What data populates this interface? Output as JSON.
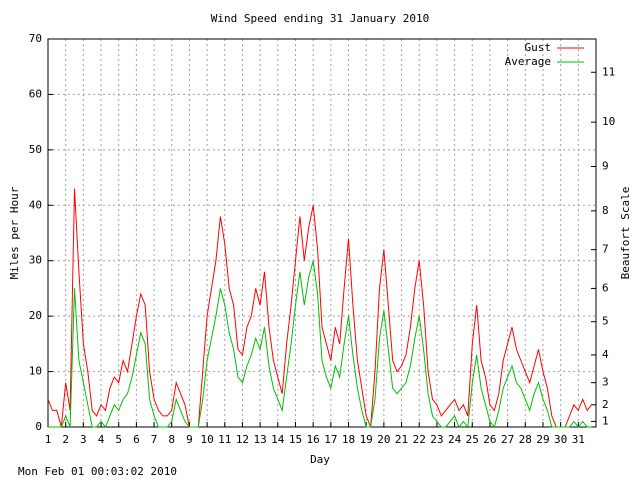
{
  "chart_data": {
    "type": "line",
    "title": "Wind Speed ending 31 January 2010",
    "xlabel": "Day",
    "ylabel": "Miles per Hour",
    "y2label": "Beaufort Scale",
    "footer": "Mon Feb 01 00:03:02 2010",
    "grid": true,
    "legend": "top-right",
    "xlim": [
      1,
      32
    ],
    "xticks": [
      1,
      2,
      3,
      4,
      5,
      6,
      7,
      8,
      9,
      10,
      11,
      12,
      13,
      14,
      15,
      16,
      17,
      18,
      19,
      20,
      21,
      22,
      23,
      24,
      25,
      26,
      27,
      28,
      29,
      30,
      31
    ],
    "ylim": [
      0,
      70
    ],
    "yticks": [
      0,
      10,
      20,
      30,
      40,
      50,
      60,
      70
    ],
    "y2lim": [
      0,
      70
    ],
    "y2ticks": [
      1,
      {
        "value": 4,
        "label": "2"
      },
      {
        "value": 8,
        "label": "3"
      },
      {
        "value": 13,
        "label": "4"
      },
      {
        "value": 19,
        "label": "5"
      },
      {
        "value": 25,
        "label": "6"
      },
      {
        "value": 32,
        "label": "7"
      },
      {
        "value": 39,
        "label": "8"
      },
      {
        "value": 47,
        "label": "9"
      },
      {
        "value": 55,
        "label": "10"
      },
      {
        "value": 64,
        "label": "11"
      }
    ],
    "x": [
      1,
      1.25,
      1.5,
      1.75,
      2,
      2.25,
      2.5,
      2.75,
      3,
      3.25,
      3.5,
      3.75,
      4,
      4.25,
      4.5,
      4.75,
      5,
      5.25,
      5.5,
      5.75,
      6,
      6.25,
      6.5,
      6.75,
      7,
      7.25,
      7.5,
      7.75,
      8,
      8.25,
      8.5,
      8.75,
      9,
      9.25,
      9.5,
      9.75,
      10,
      10.25,
      10.5,
      10.75,
      11,
      11.25,
      11.5,
      11.75,
      12,
      12.25,
      12.5,
      12.75,
      13,
      13.25,
      13.5,
      13.75,
      14,
      14.25,
      14.5,
      14.75,
      15,
      15.25,
      15.5,
      15.75,
      16,
      16.25,
      16.5,
      16.75,
      17,
      17.25,
      17.5,
      17.75,
      18,
      18.25,
      18.5,
      18.75,
      19,
      19.25,
      19.5,
      19.75,
      20,
      20.25,
      20.5,
      20.75,
      21,
      21.25,
      21.5,
      21.75,
      22,
      22.25,
      22.5,
      22.75,
      23,
      23.25,
      23.5,
      23.75,
      24,
      24.25,
      24.5,
      24.75,
      25,
      25.25,
      25.5,
      25.75,
      26,
      26.25,
      26.5,
      26.75,
      27,
      27.25,
      27.5,
      27.75,
      28,
      28.25,
      28.5,
      28.75,
      29,
      29.25,
      29.5,
      29.75,
      30,
      30.25,
      30.5,
      30.75,
      31,
      31.25,
      31.5,
      31.75
    ],
    "series": [
      {
        "name": "Gust",
        "color": "#ff0000",
        "values": [
          5,
          3,
          3,
          0,
          8,
          3,
          43,
          28,
          15,
          10,
          3,
          2,
          4,
          3,
          7,
          9,
          8,
          12,
          10,
          15,
          20,
          24,
          22,
          10,
          5,
          3,
          2,
          2,
          3,
          8,
          6,
          4,
          0,
          0,
          0,
          10,
          20,
          25,
          30,
          38,
          33,
          25,
          22,
          14,
          13,
          18,
          20,
          25,
          22,
          28,
          18,
          12,
          9,
          6,
          15,
          22,
          30,
          38,
          30,
          36,
          40,
          32,
          18,
          15,
          12,
          18,
          15,
          25,
          34,
          22,
          12,
          7,
          2,
          0,
          10,
          25,
          32,
          22,
          12,
          10,
          11,
          13,
          18,
          25,
          30,
          22,
          10,
          5,
          4,
          2,
          3,
          4,
          5,
          3,
          4,
          2,
          15,
          22,
          12,
          9,
          4,
          3,
          6,
          12,
          15,
          18,
          14,
          12,
          10,
          8,
          11,
          14,
          10,
          7,
          2,
          0,
          0,
          0,
          2,
          4,
          3,
          5,
          3,
          4
        ]
      },
      {
        "name": "Average",
        "color": "#00c000",
        "values": [
          0,
          0,
          0,
          0,
          2,
          0,
          25,
          12,
          8,
          4,
          0,
          0,
          1,
          0,
          2,
          4,
          3,
          5,
          6,
          9,
          13,
          17,
          15,
          5,
          2,
          0,
          0,
          0,
          1,
          5,
          3,
          1,
          0,
          0,
          0,
          5,
          12,
          16,
          20,
          25,
          22,
          17,
          14,
          9,
          8,
          11,
          13,
          16,
          14,
          18,
          11,
          7,
          5,
          3,
          9,
          15,
          22,
          28,
          22,
          27,
          30,
          24,
          12,
          9,
          7,
          11,
          9,
          15,
          20,
          13,
          7,
          3,
          0,
          0,
          5,
          16,
          21,
          14,
          7,
          6,
          7,
          8,
          11,
          16,
          20,
          14,
          6,
          2,
          1,
          0,
          0,
          1,
          2,
          0,
          1,
          0,
          8,
          13,
          7,
          4,
          1,
          0,
          3,
          7,
          9,
          11,
          8,
          7,
          5,
          3,
          6,
          8,
          5,
          3,
          0,
          0,
          0,
          0,
          0,
          1,
          0,
          1,
          0,
          0
        ]
      }
    ]
  }
}
